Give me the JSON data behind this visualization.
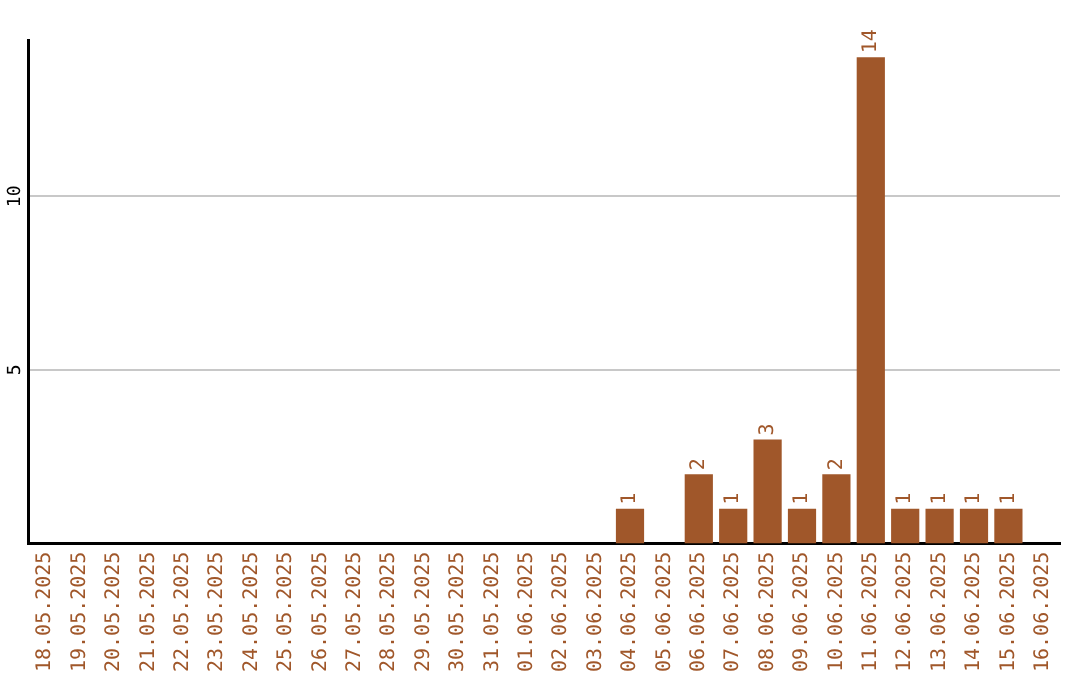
{
  "chart_data": {
    "type": "bar",
    "categories": [
      "18.05.2025",
      "19.05.2025",
      "20.05.2025",
      "21.05.2025",
      "22.05.2025",
      "23.05.2025",
      "24.05.2025",
      "25.05.2025",
      "26.05.2025",
      "27.05.2025",
      "28.05.2025",
      "29.05.2025",
      "30.05.2025",
      "31.05.2025",
      "01.06.2025",
      "02.06.2025",
      "03.06.2025",
      "04.06.2025",
      "05.06.2025",
      "06.06.2025",
      "07.06.2025",
      "08.06.2025",
      "09.06.2025",
      "10.06.2025",
      "11.06.2025",
      "12.06.2025",
      "13.06.2025",
      "14.06.2025",
      "15.06.2025",
      "16.06.2025"
    ],
    "values": [
      null,
      null,
      null,
      null,
      null,
      null,
      null,
      null,
      null,
      null,
      null,
      null,
      null,
      null,
      null,
      null,
      null,
      1,
      null,
      2,
      1,
      3,
      1,
      2,
      14,
      1,
      1,
      1,
      1,
      null
    ],
    "color": "#a0572a",
    "ylim": [
      0,
      14.5
    ],
    "yticks": [
      5,
      10
    ],
    "grid": "y",
    "data_labels": true
  }
}
